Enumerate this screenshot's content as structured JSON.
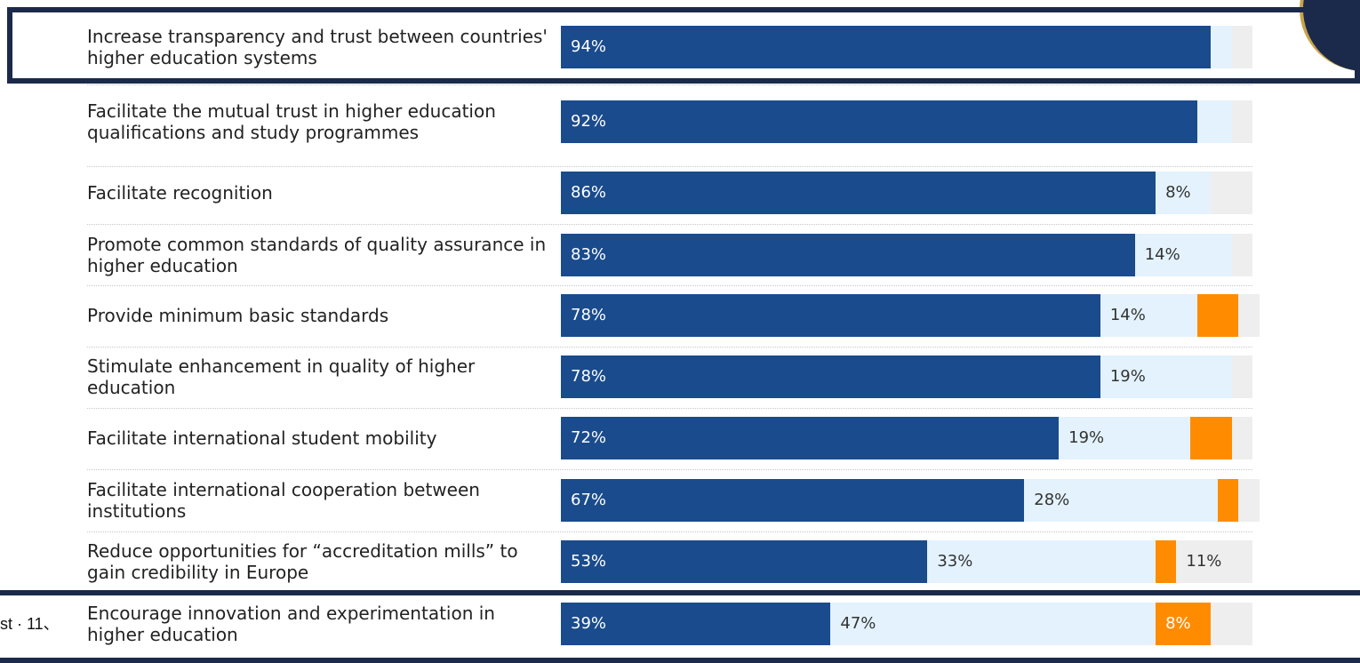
{
  "chart_data": {
    "type": "bar",
    "orientation": "horizontal",
    "stacked": true,
    "annotation": "st · 11、",
    "xlim": [
      0,
      100
    ],
    "categories": [
      "Increase transparency and trust between countries' higher education systems",
      "Facilitate the mutual trust in higher education qualifications and study programmes",
      "Facilitate recognition",
      "Promote common standards of quality assurance in higher education",
      "Provide minimum basic standards",
      "Stimulate enhancement in quality of higher education",
      "Facilitate international student mobility",
      "Facilitate international cooperation between institutions",
      "Reduce opportunities for “accreditation mills” to gain credibility in Europe",
      "Encourage innovation and experimentation in higher education"
    ],
    "series": [
      {
        "color": "#1a4b8c",
        "label_color": "#ffffff",
        "values": [
          94,
          92,
          86,
          83,
          78,
          78,
          72,
          67,
          53,
          39
        ],
        "value_labels": [
          "94%",
          "92%",
          "86%",
          "83%",
          "78%",
          "78%",
          "72%",
          "67%",
          "53%",
          "39%"
        ]
      },
      {
        "color": "#e3f2fc",
        "label_color": "#333333",
        "values": [
          3,
          5,
          8,
          14,
          14,
          19,
          19,
          28,
          33,
          47
        ],
        "value_labels": [
          null,
          null,
          "8%",
          "14%",
          "14%",
          "19%",
          "19%",
          "28%",
          "33%",
          "47%"
        ]
      },
      {
        "color": "#ff8c00",
        "label_color": "#ffffff",
        "values": [
          0,
          0,
          0,
          0,
          6,
          0,
          6,
          3,
          3,
          8
        ],
        "value_labels": [
          null,
          null,
          null,
          null,
          null,
          null,
          null,
          null,
          null,
          "8%"
        ]
      },
      {
        "color": "#eeeeee",
        "label_color": "#333333",
        "values": [
          3,
          3,
          6,
          3,
          3,
          3,
          3,
          3,
          11,
          6
        ],
        "value_labels": [
          null,
          null,
          null,
          null,
          null,
          null,
          null,
          null,
          "11%",
          null
        ]
      }
    ]
  }
}
